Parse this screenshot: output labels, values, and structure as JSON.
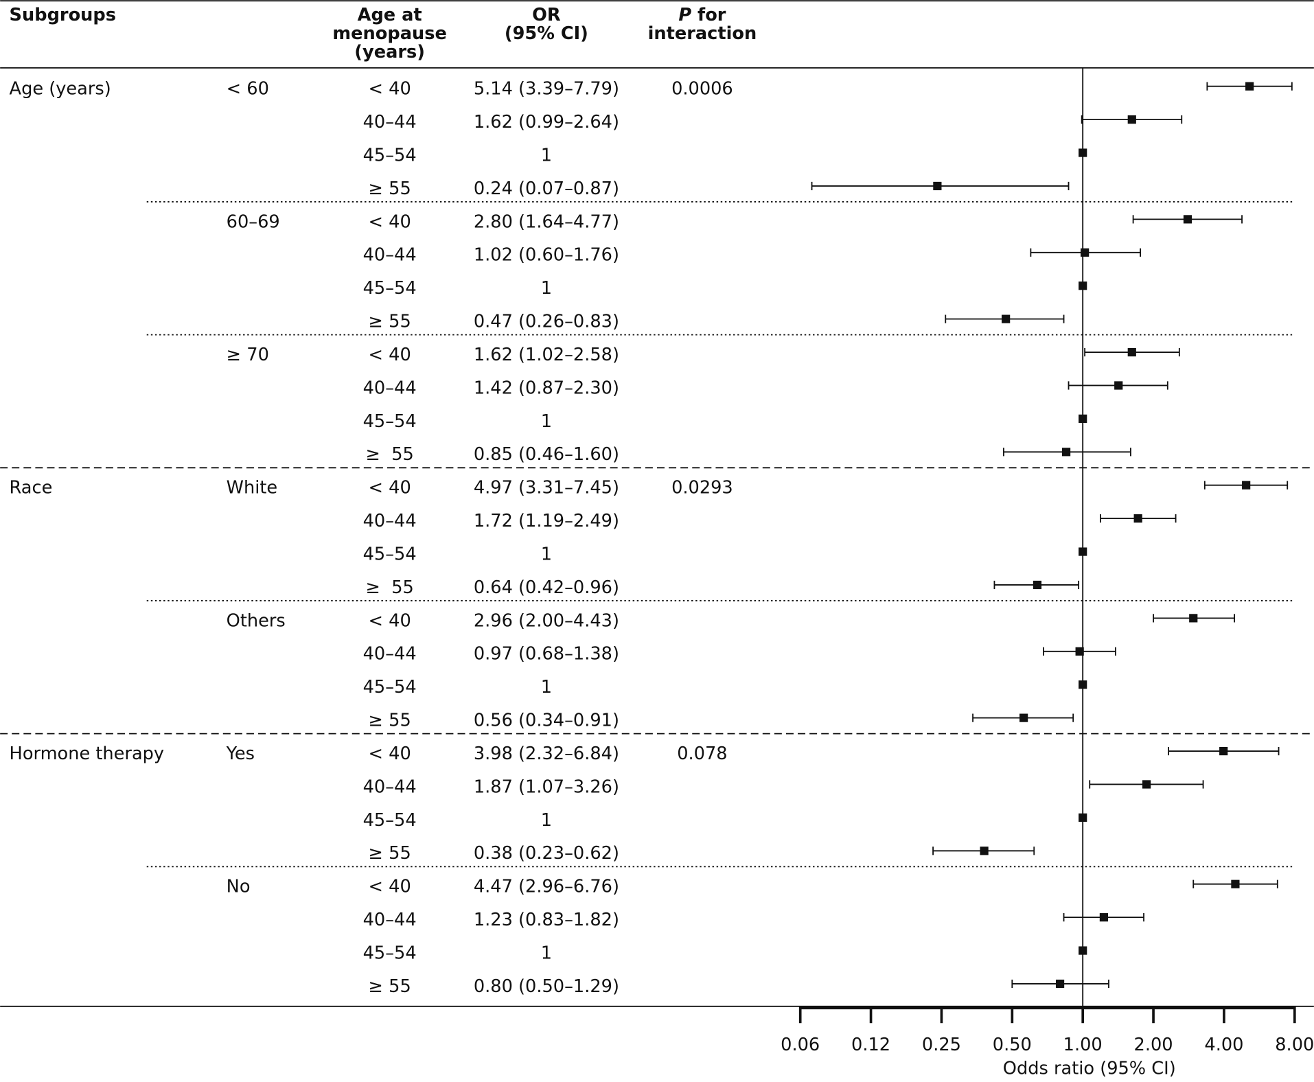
{
  "chart_data": {
    "type": "forest",
    "headers": {
      "subgroups": "Subgroups",
      "age": [
        "Age at",
        "menopause",
        "(years)"
      ],
      "or": [
        "OR",
        "(95% CI)"
      ],
      "p": [
        "P for",
        "interaction"
      ]
    },
    "x_label": "Odds ratio (95% CI)",
    "log_scale": true,
    "xlim": [
      0.0625,
      8
    ],
    "xticks": [
      {
        "value": 0.0625,
        "label": "0.06"
      },
      {
        "value": 0.125,
        "label": "0.12"
      },
      {
        "value": 0.25,
        "label": "0.25"
      },
      {
        "value": 0.5,
        "label": "0.50"
      },
      {
        "value": 1,
        "label": "1.00"
      },
      {
        "value": 2,
        "label": "2.00"
      },
      {
        "value": 4,
        "label": "4.00"
      },
      {
        "value": 8,
        "label": "8.00"
      }
    ],
    "reference": 1,
    "color": "#111111",
    "groups": [
      {
        "label": "Age (years)",
        "p_interaction": "0.0006",
        "subgroups": [
          {
            "label": "< 60",
            "rows": [
              {
                "age": "< 40",
                "or": 5.14,
                "lower": 3.39,
                "upper": 7.79,
                "or_label": "5.14 (3.39–7.79)"
              },
              {
                "age": "40–44",
                "or": 1.62,
                "lower": 0.99,
                "upper": 2.64,
                "or_label": "1.62 (0.99–2.64)"
              },
              {
                "age": "45–54",
                "or": 1,
                "or_label": "1"
              },
              {
                "age": "≥ 55",
                "or": 0.24,
                "lower": 0.07,
                "upper": 0.87,
                "or_label": "0.24 (0.07–0.87)"
              }
            ]
          },
          {
            "label": "60–69",
            "rows": [
              {
                "age": "< 40",
                "or": 2.8,
                "lower": 1.64,
                "upper": 4.77,
                "or_label": "2.80 (1.64–4.77)"
              },
              {
                "age": "40–44",
                "or": 1.02,
                "lower": 0.6,
                "upper": 1.76,
                "or_label": "1.02 (0.60–1.76)"
              },
              {
                "age": "45–54",
                "or": 1,
                "or_label": "1"
              },
              {
                "age": "≥ 55",
                "or": 0.47,
                "lower": 0.26,
                "upper": 0.83,
                "or_label": "0.47 (0.26–0.83)"
              }
            ]
          },
          {
            "label": "≥ 70",
            "rows": [
              {
                "age": "< 40",
                "or": 1.62,
                "lower": 1.02,
                "upper": 2.58,
                "or_label": "1.62 (1.02–2.58)"
              },
              {
                "age": "40–44",
                "or": 1.42,
                "lower": 0.87,
                "upper": 2.3,
                "or_label": "1.42 (0.87–2.30)"
              },
              {
                "age": "45–54",
                "or": 1,
                "or_label": "1"
              },
              {
                "age": "≥  55",
                "or": 0.85,
                "lower": 0.46,
                "upper": 1.6,
                "or_label": "0.85 (0.46–1.60)"
              }
            ]
          }
        ]
      },
      {
        "label": "Race",
        "p_interaction": "0.0293",
        "subgroups": [
          {
            "label": "White",
            "rows": [
              {
                "age": "< 40",
                "or": 4.97,
                "lower": 3.31,
                "upper": 7.45,
                "or_label": "4.97 (3.31–7.45)"
              },
              {
                "age": "40–44",
                "or": 1.72,
                "lower": 1.19,
                "upper": 2.49,
                "or_label": "1.72 (1.19–2.49)"
              },
              {
                "age": "45–54",
                "or": 1,
                "or_label": "1"
              },
              {
                "age": "≥  55",
                "or": 0.64,
                "lower": 0.42,
                "upper": 0.96,
                "or_label": "0.64 (0.42–0.96)"
              }
            ]
          },
          {
            "label": "Others",
            "rows": [
              {
                "age": "< 40",
                "or": 2.96,
                "lower": 2.0,
                "upper": 4.43,
                "or_label": "2.96 (2.00–4.43)"
              },
              {
                "age": "40–44",
                "or": 0.97,
                "lower": 0.68,
                "upper": 1.38,
                "or_label": "0.97 (0.68–1.38)"
              },
              {
                "age": "45–54",
                "or": 1,
                "or_label": "1"
              },
              {
                "age": "≥ 55",
                "or": 0.56,
                "lower": 0.34,
                "upper": 0.91,
                "or_label": "0.56 (0.34–0.91)"
              }
            ]
          }
        ]
      },
      {
        "label": "Hormone therapy",
        "p_interaction": "0.078",
        "subgroups": [
          {
            "label": "Yes",
            "rows": [
              {
                "age": "< 40",
                "or": 3.98,
                "lower": 2.32,
                "upper": 6.84,
                "or_label": "3.98 (2.32–6.84)"
              },
              {
                "age": "40–44",
                "or": 1.87,
                "lower": 1.07,
                "upper": 3.26,
                "or_label": "1.87 (1.07–3.26)"
              },
              {
                "age": "45–54",
                "or": 1,
                "or_label": "1"
              },
              {
                "age": "≥ 55",
                "or": 0.38,
                "lower": 0.23,
                "upper": 0.62,
                "or_label": "0.38 (0.23–0.62)"
              }
            ]
          },
          {
            "label": "No",
            "rows": [
              {
                "age": "< 40",
                "or": 4.47,
                "lower": 2.96,
                "upper": 6.76,
                "or_label": "4.47 (2.96–6.76)"
              },
              {
                "age": "40–44",
                "or": 1.23,
                "lower": 0.83,
                "upper": 1.82,
                "or_label": "1.23 (0.83–1.82)"
              },
              {
                "age": "45–54",
                "or": 1,
                "or_label": "1"
              },
              {
                "age": "≥ 55",
                "or": 0.8,
                "lower": 0.5,
                "upper": 1.29,
                "or_label": "0.80 (0.50–1.29)"
              }
            ]
          }
        ]
      }
    ]
  }
}
